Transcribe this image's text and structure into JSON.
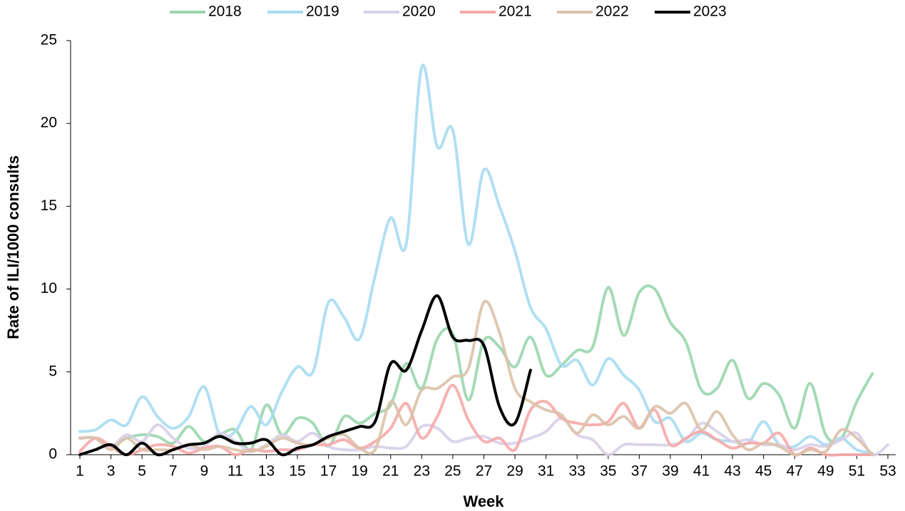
{
  "chart_data": {
    "type": "line",
    "x_label": "Week",
    "y_label": "Rate of ILI/1000  consults",
    "x": [
      1,
      2,
      3,
      4,
      5,
      6,
      7,
      8,
      9,
      10,
      11,
      12,
      13,
      14,
      15,
      16,
      17,
      18,
      19,
      20,
      21,
      22,
      23,
      24,
      25,
      26,
      27,
      28,
      29,
      30,
      31,
      32,
      33,
      34,
      35,
      36,
      37,
      38,
      39,
      40,
      41,
      42,
      43,
      44,
      45,
      46,
      47,
      48,
      49,
      50,
      51,
      52,
      53
    ],
    "xlim": [
      1,
      53
    ],
    "xticks": [
      1,
      3,
      5,
      7,
      9,
      11,
      13,
      15,
      17,
      19,
      21,
      23,
      25,
      27,
      29,
      31,
      33,
      35,
      37,
      39,
      41,
      43,
      45,
      47,
      49,
      51,
      53
    ],
    "ylim": [
      0,
      25
    ],
    "yticks": [
      0,
      5,
      10,
      15,
      20,
      25
    ],
    "grid": false,
    "legend": "top",
    "series": [
      {
        "name": "2018",
        "color": "#9ad6ae",
        "values": [
          1.0,
          1.0,
          0.5,
          1.0,
          1.2,
          1.1,
          0.7,
          1.7,
          0.8,
          1.2,
          1.5,
          0.3,
          3.0,
          1.2,
          2.2,
          1.9,
          0.5,
          2.3,
          1.9,
          2.5,
          3.0,
          5.5,
          4.0,
          7.0,
          7.3,
          3.3,
          6.9,
          6.5,
          5.3,
          7.1,
          4.8,
          5.4,
          6.3,
          6.5,
          10.1,
          7.2,
          9.8,
          10.0,
          8.0,
          6.8,
          3.9,
          4.0,
          5.7,
          3.4,
          4.3,
          3.6,
          1.6,
          4.3,
          1.2,
          1.0,
          3.2,
          4.9,
          null
        ]
      },
      {
        "name": "2019",
        "color": "#a8dcf2",
        "values": [
          1.4,
          1.5,
          2.1,
          1.8,
          3.5,
          2.3,
          1.6,
          2.3,
          4.1,
          1.2,
          1.4,
          2.9,
          1.8,
          3.8,
          5.3,
          5.0,
          9.2,
          8.3,
          7.0,
          10.8,
          14.3,
          12.7,
          23.4,
          18.6,
          19.6,
          12.7,
          17.2,
          15.0,
          12.3,
          8.9,
          7.6,
          5.4,
          5.7,
          4.2,
          5.8,
          4.8,
          3.9,
          2.0,
          2.2,
          0.8,
          1.3,
          0.9,
          0.8,
          0.7,
          2.0,
          0.6,
          0.5,
          1.1,
          0.6,
          1.0,
          0.3,
          0.1,
          null
        ]
      },
      {
        "name": "2020",
        "color": "#d8cfe8",
        "values": [
          1.0,
          1.0,
          0.5,
          1.2,
          0.8,
          1.8,
          1.0,
          0.4,
          0.5,
          1.3,
          0.8,
          0.2,
          0.6,
          1.2,
          0.8,
          1.3,
          0.5,
          0.3,
          0.3,
          0.5,
          0.4,
          0.5,
          1.7,
          1.6,
          0.8,
          1.0,
          1.1,
          0.7,
          0.7,
          1.0,
          1.4,
          2.2,
          1.2,
          0.9,
          0,
          0.6,
          0.6,
          0.6,
          0.6,
          0.9,
          1.9,
          1.4,
          0.8,
          0.9,
          0.6,
          0.6,
          0.3,
          0.6,
          0.5,
          0.9,
          1.3,
          0,
          0.6
        ]
      },
      {
        "name": "2021",
        "color": "#f6a9a9",
        "values": [
          0.2,
          1.0,
          0.5,
          0,
          0.3,
          0.6,
          0.5,
          0.1,
          0.4,
          0.5,
          0,
          0.3,
          0.2,
          0.3,
          0.3,
          0.6,
          0.6,
          0.9,
          0.4,
          0.8,
          1.6,
          3.1,
          1.0,
          2.3,
          4.2,
          2.1,
          0.8,
          1.0,
          0.3,
          2.7,
          3.2,
          2.2,
          1.9,
          1.8,
          2.0,
          3.1,
          1.6,
          2.7,
          0.6,
          1.0,
          1.4,
          0.9,
          0.4,
          0.7,
          0.7,
          1.3,
          0,
          0.4,
          0,
          0,
          0,
          0,
          null
        ]
      },
      {
        "name": "2022",
        "color": "#dcc2aa",
        "values": [
          1.0,
          1.0,
          0.3,
          1.0,
          0.3,
          0.3,
          0.3,
          0.6,
          0.3,
          0.5,
          0.3,
          0.2,
          0.5,
          1.0,
          0.7,
          0.6,
          1.0,
          1.2,
          0.4,
          0.3,
          3.2,
          1.8,
          3.9,
          4.0,
          4.7,
          5.2,
          9.2,
          7.4,
          4.0,
          3.2,
          2.7,
          2.4,
          1.3,
          2.4,
          1.8,
          2.3,
          1.6,
          2.9,
          2.5,
          3.1,
          1.5,
          2.6,
          1.2,
          0.3,
          0.7,
          0.5,
          0,
          0.3,
          0.2,
          1.5,
          1.0,
          0,
          null
        ]
      },
      {
        "name": "2023",
        "color": "#000000",
        "values": [
          0,
          0.3,
          0.6,
          0,
          0.7,
          0,
          0.3,
          0.6,
          0.7,
          1.1,
          0.7,
          0.7,
          0.9,
          0,
          0.4,
          0.6,
          1.1,
          1.4,
          1.7,
          2.0,
          5.5,
          5.1,
          7.5,
          9.6,
          7.1,
          6.9,
          6.6,
          2.9,
          1.9,
          5.1,
          null,
          null,
          null,
          null,
          null,
          null,
          null,
          null,
          null,
          null,
          null,
          null,
          null,
          null,
          null,
          null,
          null,
          null,
          null,
          null,
          null,
          null,
          null
        ]
      }
    ]
  }
}
